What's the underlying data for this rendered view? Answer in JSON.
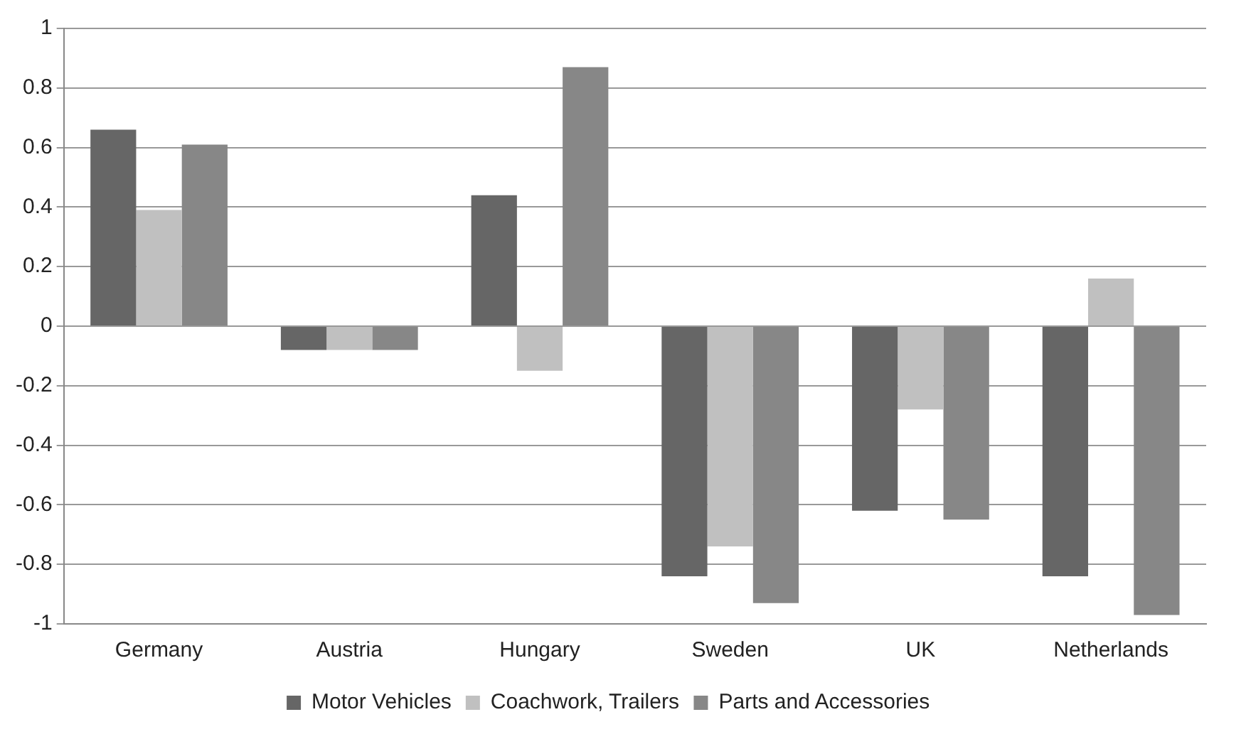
{
  "chart_data": {
    "type": "bar",
    "categories": [
      "Germany",
      "Austria",
      "Hungary",
      "Sweden",
      "UK",
      "Netherlands"
    ],
    "series": [
      {
        "name": "Motor Vehicles",
        "color": "#666666",
        "values": [
          0.66,
          -0.08,
          0.44,
          -0.84,
          -0.62,
          -0.84
        ]
      },
      {
        "name": "Coachwork, Trailers",
        "color": "#c0c0c0",
        "values": [
          0.39,
          -0.08,
          -0.15,
          -0.74,
          -0.28,
          0.16
        ]
      },
      {
        "name": "Parts and Accessories",
        "color": "#878787",
        "values": [
          0.61,
          -0.08,
          0.87,
          -0.93,
          -0.65,
          -0.97
        ]
      }
    ],
    "ylim": [
      -1,
      1
    ],
    "yticks": [
      -1,
      -0.8,
      -0.6,
      -0.4,
      -0.2,
      0,
      0.2,
      0.4,
      0.6,
      0.8,
      1
    ],
    "grid": "y",
    "legend": "bottom"
  }
}
